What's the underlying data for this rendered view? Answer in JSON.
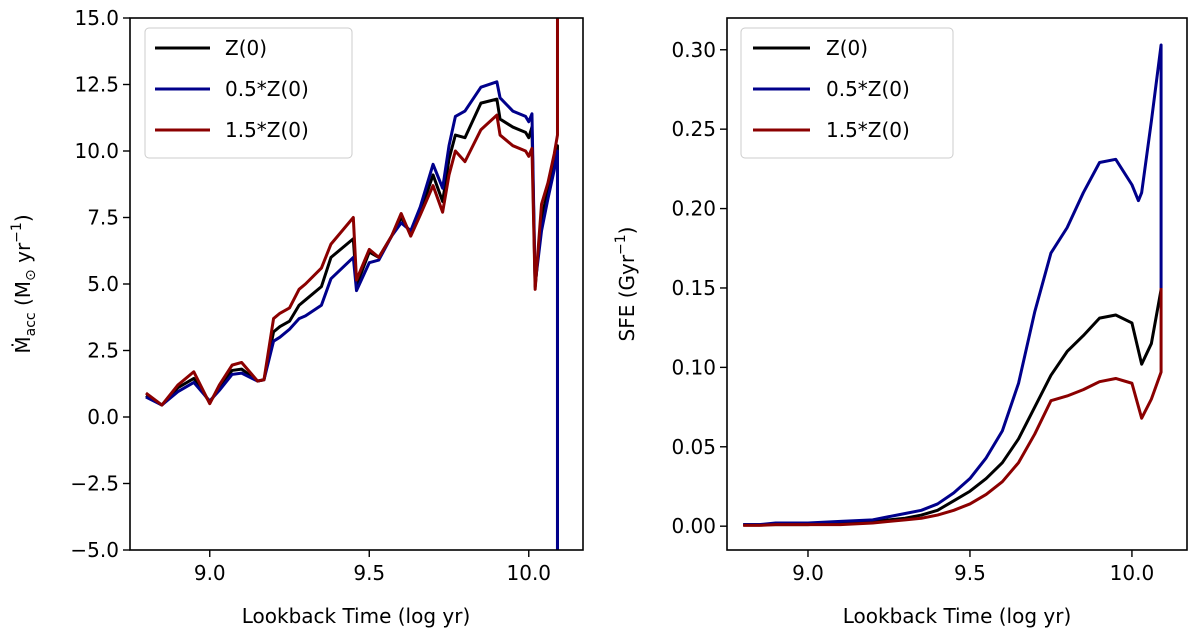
{
  "chart_data": [
    {
      "type": "line",
      "xlabel": "Lookback Time (log yr)",
      "ylabel_main": "Ṁ",
      "ylabel_sub": "acc",
      "ylabel_rest": " (M",
      "ylabel_sun": "⊙",
      "ylabel_unit": " yr",
      "ylabel_sup": "−1",
      "ylabel_close": ")",
      "xlim": [
        8.75,
        10.17
      ],
      "ylim": [
        -5.0,
        15.0
      ],
      "xticks": [
        9.0,
        9.5,
        10.0
      ],
      "xtick_labels": [
        "9.0",
        "9.5",
        "10.0"
      ],
      "yticks": [
        -5.0,
        -2.5,
        0.0,
        2.5,
        5.0,
        7.5,
        10.0,
        12.5,
        15.0
      ],
      "ytick_labels": [
        "−5.0",
        "−2.5",
        "0.0",
        "2.5",
        "5.0",
        "7.5",
        "10.0",
        "12.5",
        "15.0"
      ],
      "legend_position": "top-left",
      "grid": false,
      "series": [
        {
          "name": "Z(0)",
          "color": "#000000",
          "x": [
            8.8,
            8.85,
            8.9,
            8.95,
            9.0,
            9.03,
            9.07,
            9.1,
            9.15,
            9.17,
            9.2,
            9.22,
            9.25,
            9.28,
            9.3,
            9.35,
            9.38,
            9.45,
            9.46,
            9.5,
            9.53,
            9.57,
            9.6,
            9.63,
            9.66,
            9.7,
            9.73,
            9.75,
            9.77,
            9.8,
            9.85,
            9.9,
            9.91,
            9.95,
            9.99,
            10.0,
            10.01,
            10.02,
            10.04,
            10.06,
            10.08,
            10.09,
            10.09
          ],
          "y": [
            0.8,
            0.45,
            1.1,
            1.45,
            0.55,
            1.1,
            1.75,
            1.8,
            1.35,
            1.4,
            3.2,
            3.4,
            3.6,
            4.2,
            4.4,
            4.9,
            6.0,
            6.7,
            4.95,
            6.2,
            6.0,
            6.8,
            7.5,
            6.9,
            7.7,
            9.1,
            8.1,
            9.7,
            10.6,
            10.5,
            11.8,
            11.95,
            11.2,
            10.9,
            10.7,
            10.5,
            10.9,
            4.9,
            7.5,
            8.5,
            9.6,
            10.2,
            -5.0
          ]
        },
        {
          "name": "0.5*Z(0)",
          "color": "#00008b",
          "x": [
            8.8,
            8.85,
            8.9,
            8.95,
            9.0,
            9.03,
            9.07,
            9.1,
            9.15,
            9.17,
            9.2,
            9.22,
            9.25,
            9.28,
            9.3,
            9.35,
            9.38,
            9.45,
            9.46,
            9.5,
            9.53,
            9.57,
            9.6,
            9.63,
            9.66,
            9.7,
            9.73,
            9.75,
            9.77,
            9.8,
            9.85,
            9.9,
            9.91,
            9.95,
            9.99,
            10.0,
            10.01,
            10.02,
            10.04,
            10.06,
            10.08,
            10.09,
            10.09
          ],
          "y": [
            0.75,
            0.45,
            0.95,
            1.3,
            0.6,
            1.0,
            1.6,
            1.65,
            1.35,
            1.4,
            2.85,
            3.0,
            3.3,
            3.7,
            3.8,
            4.2,
            5.2,
            6.0,
            4.75,
            5.8,
            5.9,
            6.8,
            7.3,
            7.0,
            7.9,
            9.5,
            8.6,
            10.2,
            11.3,
            11.5,
            12.4,
            12.6,
            12.0,
            11.5,
            11.3,
            11.1,
            11.4,
            5.0,
            7.0,
            8.2,
            9.3,
            10.0,
            -5.0
          ]
        },
        {
          "name": "1.5*Z(0)",
          "color": "#8b0000",
          "x": [
            8.8,
            8.85,
            8.9,
            8.95,
            9.0,
            9.03,
            9.07,
            9.1,
            9.15,
            9.17,
            9.2,
            9.22,
            9.25,
            9.28,
            9.3,
            9.35,
            9.38,
            9.45,
            9.46,
            9.5,
            9.53,
            9.57,
            9.6,
            9.63,
            9.66,
            9.7,
            9.73,
            9.75,
            9.77,
            9.8,
            9.85,
            9.9,
            9.91,
            9.95,
            9.99,
            10.0,
            10.01,
            10.02,
            10.04,
            10.06,
            10.08,
            10.09,
            10.09
          ],
          "y": [
            0.9,
            0.45,
            1.2,
            1.7,
            0.5,
            1.2,
            1.95,
            2.05,
            1.35,
            1.4,
            3.7,
            3.9,
            4.1,
            4.8,
            5.0,
            5.6,
            6.5,
            7.5,
            5.15,
            6.3,
            6.0,
            6.8,
            7.65,
            6.8,
            7.6,
            8.7,
            7.7,
            9.1,
            10.0,
            9.6,
            10.8,
            11.35,
            10.6,
            10.2,
            10.0,
            9.8,
            10.1,
            4.8,
            8.0,
            8.8,
            9.9,
            10.6,
            15.0
          ]
        }
      ]
    },
    {
      "type": "line",
      "xlabel": "Lookback Time (log yr)",
      "ylabel_main": "SFE (Gyr",
      "ylabel_sup": "−1",
      "ylabel_close": ")",
      "xlim": [
        8.75,
        10.17
      ],
      "ylim": [
        -0.015,
        0.32
      ],
      "xticks": [
        9.0,
        9.5,
        10.0
      ],
      "xtick_labels": [
        "9.0",
        "9.5",
        "10.0"
      ],
      "yticks": [
        0.0,
        0.05,
        0.1,
        0.15,
        0.2,
        0.25,
        0.3
      ],
      "ytick_labels": [
        "0.00",
        "0.05",
        "0.10",
        "0.15",
        "0.20",
        "0.25",
        "0.30"
      ],
      "legend_position": "top-left",
      "grid": false,
      "series": [
        {
          "name": "Z(0)",
          "color": "#000000",
          "x": [
            8.8,
            8.85,
            8.9,
            9.0,
            9.1,
            9.2,
            9.25,
            9.3,
            9.35,
            9.4,
            9.45,
            9.5,
            9.55,
            9.6,
            9.65,
            9.7,
            9.75,
            9.8,
            9.85,
            9.9,
            9.95,
            10.0,
            10.03,
            10.06,
            10.09
          ],
          "y": [
            0.001,
            0.001,
            0.001,
            0.001,
            0.002,
            0.003,
            0.004,
            0.005,
            0.007,
            0.01,
            0.016,
            0.022,
            0.03,
            0.04,
            0.055,
            0.075,
            0.095,
            0.11,
            0.12,
            0.131,
            0.133,
            0.128,
            0.102,
            0.115,
            0.149
          ]
        },
        {
          "name": "0.5*Z(0)",
          "color": "#00008b",
          "x": [
            8.8,
            8.85,
            8.9,
            9.0,
            9.1,
            9.2,
            9.25,
            9.3,
            9.35,
            9.4,
            9.45,
            9.5,
            9.55,
            9.6,
            9.65,
            9.7,
            9.75,
            9.8,
            9.85,
            9.9,
            9.95,
            10.0,
            10.02,
            10.03,
            10.06,
            10.09,
            10.09
          ],
          "y": [
            0.001,
            0.001,
            0.002,
            0.002,
            0.003,
            0.004,
            0.006,
            0.008,
            0.01,
            0.014,
            0.021,
            0.03,
            0.043,
            0.06,
            0.09,
            0.135,
            0.172,
            0.188,
            0.21,
            0.229,
            0.231,
            0.215,
            0.205,
            0.21,
            0.255,
            0.303,
            0.15
          ]
        },
        {
          "name": "1.5*Z(0)",
          "color": "#8b0000",
          "x": [
            8.8,
            8.85,
            8.9,
            9.0,
            9.1,
            9.2,
            9.25,
            9.3,
            9.35,
            9.4,
            9.45,
            9.5,
            9.55,
            9.6,
            9.65,
            9.7,
            9.75,
            9.8,
            9.85,
            9.9,
            9.95,
            10.0,
            10.03,
            10.06,
            10.09,
            10.09
          ],
          "y": [
            0.0005,
            0.0005,
            0.001,
            0.001,
            0.001,
            0.002,
            0.003,
            0.004,
            0.005,
            0.007,
            0.01,
            0.014,
            0.02,
            0.028,
            0.04,
            0.058,
            0.079,
            0.082,
            0.086,
            0.091,
            0.093,
            0.09,
            0.068,
            0.08,
            0.097,
            0.15
          ]
        }
      ]
    }
  ]
}
